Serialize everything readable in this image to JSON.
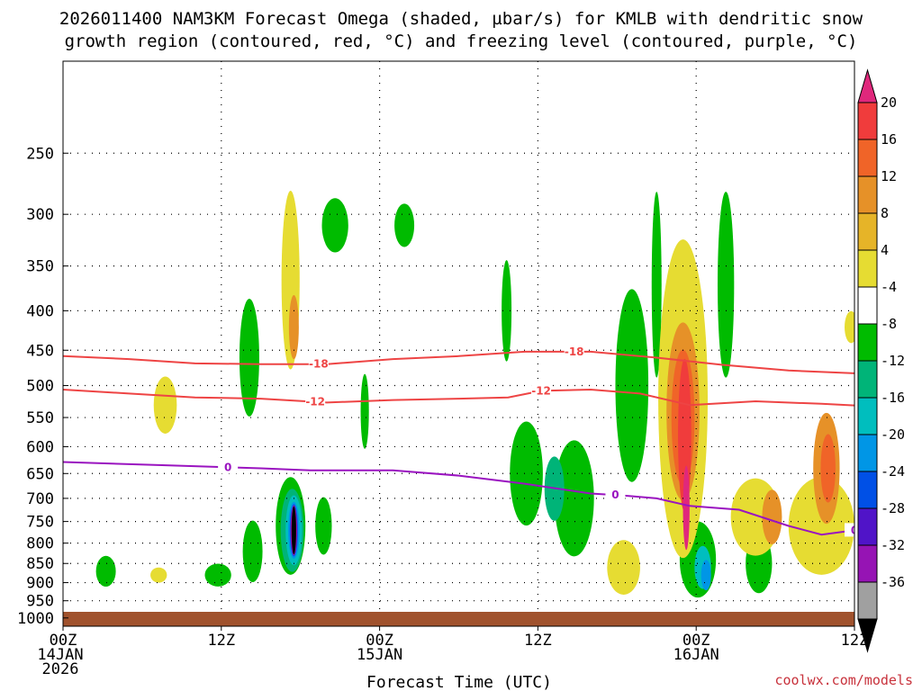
{
  "chart_data": {
    "type": "heatmap",
    "title_line1": "2026011400 NAM3KM Forecast Omega (shaded, µbar/s) for KMLB with dendritic snow",
    "title_line2": "growth region (contoured, red, °C) and freezing level (contoured, purple, °C)",
    "xlabel": "Forecast Time (UTC)",
    "ylabel": "",
    "credit": "coolwx.com/models",
    "x_range_hours": [
      0,
      48
    ],
    "y_range_hPa": [
      1025,
      190
    ],
    "y_ticks": [
      250,
      300,
      350,
      400,
      450,
      500,
      550,
      600,
      650,
      700,
      750,
      800,
      850,
      900,
      950,
      1000
    ],
    "x_ticks": [
      {
        "hour": 0,
        "line1": "00Z",
        "line2": "14JAN",
        "line3": "2026"
      },
      {
        "hour": 12,
        "line1": "12Z",
        "line2": "",
        "line3": ""
      },
      {
        "hour": 24,
        "line1": "00Z",
        "line2": "15JAN",
        "line3": ""
      },
      {
        "hour": 36,
        "line1": "12Z",
        "line2": "",
        "line3": ""
      },
      {
        "hour": 48,
        "line1": "00Z",
        "line2": "16JAN",
        "line3": ""
      },
      {
        "hour": 60,
        "line1": "12Z",
        "line2": "",
        "line3": ""
      }
    ],
    "colorbar": {
      "units": "µbar/s",
      "labels": [
        "20",
        "16",
        "12",
        "8",
        "4",
        "-4",
        "-8",
        "-12",
        "-16",
        "-20",
        "-24",
        "-28",
        "-32",
        "-36"
      ],
      "segments": [
        {
          "color": "#e0287c"
        },
        {
          "color": "#f03c3c"
        },
        {
          "color": "#f06428"
        },
        {
          "color": "#e69128"
        },
        {
          "color": "#e6b428"
        },
        {
          "color": "#e6dc32"
        },
        {
          "color": "#ffffff"
        },
        {
          "color": "#00bb00"
        },
        {
          "color": "#00b478"
        },
        {
          "color": "#00bebe"
        },
        {
          "color": "#0096e6"
        },
        {
          "color": "#0050e6"
        },
        {
          "color": "#5014c8"
        },
        {
          "color": "#9614b4"
        },
        {
          "color": "#a0a0a0"
        },
        {
          "color": "#000000"
        }
      ]
    },
    "contours": [
      {
        "name": "dgz-minus18",
        "label": "-18",
        "color": "#ee4444",
        "labels_at_hours": [
          15.5,
          31,
          51
        ],
        "points": [
          [
            0,
            458
          ],
          [
            4,
            462
          ],
          [
            8,
            468
          ],
          [
            12,
            469
          ],
          [
            16,
            469
          ],
          [
            20,
            462
          ],
          [
            24,
            458
          ],
          [
            28,
            452
          ],
          [
            32,
            452
          ],
          [
            36,
            460
          ],
          [
            40,
            470
          ],
          [
            44,
            478
          ],
          [
            48,
            482
          ],
          [
            52,
            478
          ],
          [
            56,
            462
          ],
          [
            60,
            462
          ]
        ]
      },
      {
        "name": "dgz-minus12",
        "label": "-12",
        "color": "#ee4444",
        "labels_at_hours": [
          15.3,
          29,
          51
        ],
        "points": [
          [
            0,
            506
          ],
          [
            4,
            512
          ],
          [
            8,
            518
          ],
          [
            12,
            520
          ],
          [
            16,
            526
          ],
          [
            20,
            522
          ],
          [
            24,
            520
          ],
          [
            27,
            518
          ],
          [
            29,
            508
          ],
          [
            32,
            506
          ],
          [
            35,
            512
          ],
          [
            38,
            530
          ],
          [
            42,
            524
          ],
          [
            46,
            528
          ],
          [
            49,
            532
          ],
          [
            52,
            534
          ],
          [
            56,
            528
          ],
          [
            60,
            526
          ]
        ]
      },
      {
        "name": "freezing-level",
        "label": "0",
        "color": "#9a14c0",
        "labels_at_hours": [
          10,
          33.5,
          48
        ],
        "points": [
          [
            0,
            628
          ],
          [
            6,
            634
          ],
          [
            12,
            640
          ],
          [
            15,
            644
          ],
          [
            20,
            644
          ],
          [
            24,
            654
          ],
          [
            28,
            670
          ],
          [
            30,
            680
          ],
          [
            32,
            690
          ],
          [
            34,
            694
          ],
          [
            36,
            700
          ],
          [
            38,
            716
          ],
          [
            41,
            724
          ],
          [
            44,
            760
          ],
          [
            46,
            780
          ],
          [
            48,
            770
          ],
          [
            49,
            756
          ],
          [
            50,
            700
          ],
          [
            52,
            690
          ],
          [
            55,
            696
          ],
          [
            58,
            690
          ],
          [
            60,
            688
          ]
        ]
      }
    ],
    "shading": [
      {
        "cat": "pos4",
        "h": 13.8,
        "p": 365,
        "dh": 0.55,
        "dp": 190
      },
      {
        "cat": "pos4",
        "h": 6.2,
        "p": 530,
        "dh": 0.7,
        "dp": 90
      },
      {
        "cat": "pos4",
        "h": 5.8,
        "p": 880,
        "dh": 0.5,
        "dp": 40
      },
      {
        "cat": "pos8",
        "h": 14.0,
        "p": 420,
        "dh": 0.3,
        "dp": 80
      },
      {
        "cat": "neg4",
        "h": 11.3,
        "p": 460,
        "dh": 0.6,
        "dp": 160
      },
      {
        "cat": "neg4",
        "h": 16.5,
        "p": 310,
        "dh": 0.8,
        "dp": 50
      },
      {
        "cat": "neg4",
        "h": 20.7,
        "p": 310,
        "dh": 0.6,
        "dp": 40
      },
      {
        "cat": "neg4",
        "h": 18.3,
        "p": 540,
        "dh": 0.25,
        "dp": 120
      },
      {
        "cat": "neg4",
        "h": 26.9,
        "p": 400,
        "dh": 0.3,
        "dp": 120
      },
      {
        "cat": "neg4",
        "h": 28.1,
        "p": 650,
        "dh": 1.0,
        "dp": 200
      },
      {
        "cat": "neg4",
        "h": 31.0,
        "p": 700,
        "dh": 1.2,
        "dp": 240
      },
      {
        "cat": "neg4",
        "h": 34.5,
        "p": 500,
        "dh": 1.0,
        "dp": 280
      },
      {
        "cat": "neg4",
        "h": 36.0,
        "p": 370,
        "dh": 0.3,
        "dp": 200
      },
      {
        "cat": "neg4",
        "h": 40.2,
        "p": 370,
        "dh": 0.5,
        "dp": 200
      },
      {
        "cat": "neg4",
        "h": 2.6,
        "p": 870,
        "dh": 0.6,
        "dp": 80
      },
      {
        "cat": "neg4",
        "h": 9.4,
        "p": 880,
        "dh": 0.8,
        "dp": 60
      },
      {
        "cat": "neg4",
        "h": 11.5,
        "p": 820,
        "dh": 0.6,
        "dp": 150
      },
      {
        "cat": "neg4",
        "h": 13.8,
        "p": 760,
        "dh": 0.9,
        "dp": 220
      },
      {
        "cat": "neg4",
        "h": 15.8,
        "p": 760,
        "dh": 0.5,
        "dp": 130
      },
      {
        "cat": "neg4",
        "h": 38.5,
        "p": 840,
        "dh": 1.1,
        "dp": 190
      },
      {
        "cat": "neg4",
        "h": 42.2,
        "p": 850,
        "dh": 0.8,
        "dp": 150
      },
      {
        "cat": "neg8",
        "h": 13.9,
        "p": 770,
        "dh": 0.7,
        "dp": 190
      },
      {
        "cat": "neg8",
        "h": 29.8,
        "p": 680,
        "dh": 0.6,
        "dp": 130
      },
      {
        "cat": "neg12",
        "h": 14.0,
        "p": 770,
        "dh": 0.5,
        "dp": 160
      },
      {
        "cat": "neg12",
        "h": 38.8,
        "p": 860,
        "dh": 0.5,
        "dp": 110
      },
      {
        "cat": "neg16",
        "h": 14.0,
        "p": 770,
        "dh": 0.35,
        "dp": 130
      },
      {
        "cat": "neg16",
        "h": 39.0,
        "p": 880,
        "dh": 0.3,
        "dp": 80
      },
      {
        "cat": "neg20",
        "h": 14.0,
        "p": 770,
        "dh": 0.25,
        "dp": 120
      },
      {
        "cat": "neg28",
        "h": 14.0,
        "p": 770,
        "dh": 0.2,
        "dp": 115
      },
      {
        "cat": "neg36",
        "h": 14.0,
        "p": 770,
        "dh": 0.14,
        "dp": 110
      },
      {
        "cat": "pos4",
        "h": 37.6,
        "p": 520,
        "dh": 1.5,
        "dp": 460
      },
      {
        "cat": "pos4",
        "h": 34.0,
        "p": 860,
        "dh": 1.0,
        "dp": 140
      },
      {
        "cat": "pos4",
        "h": 46.0,
        "p": 760,
        "dh": 2.0,
        "dp": 220
      },
      {
        "cat": "pos4",
        "h": 42.0,
        "p": 740,
        "dh": 1.5,
        "dp": 170
      },
      {
        "cat": "pos4",
        "h": 51.5,
        "p": 750,
        "dh": 0.8,
        "dp": 80
      },
      {
        "cat": "pos4",
        "h": 53.5,
        "p": 520,
        "dh": 0.6,
        "dp": 90
      },
      {
        "cat": "pos4",
        "h": 47.8,
        "p": 420,
        "dh": 0.4,
        "dp": 40
      },
      {
        "cat": "pos4",
        "h": 59.2,
        "p": 960,
        "dh": 0.6,
        "dp": 20
      },
      {
        "cat": "pos4",
        "h": 55.2,
        "p": 770,
        "dh": 0.4,
        "dp": 40
      },
      {
        "cat": "pos8",
        "h": 37.6,
        "p": 540,
        "dh": 1.0,
        "dp": 280
      },
      {
        "cat": "pos8",
        "h": 46.3,
        "p": 640,
        "dh": 0.8,
        "dp": 210
      },
      {
        "cat": "pos8",
        "h": 43.0,
        "p": 740,
        "dh": 0.6,
        "dp": 120
      },
      {
        "cat": "pos12",
        "h": 37.6,
        "p": 550,
        "dh": 0.7,
        "dp": 220
      },
      {
        "cat": "pos12",
        "h": 46.4,
        "p": 640,
        "dh": 0.45,
        "dp": 130
      },
      {
        "cat": "pos16",
        "h": 37.7,
        "p": 580,
        "dh": 0.4,
        "dp": 260
      },
      {
        "cat": "pos20",
        "h": 37.8,
        "p": 720,
        "dh": 0.2,
        "dp": 180
      }
    ]
  }
}
